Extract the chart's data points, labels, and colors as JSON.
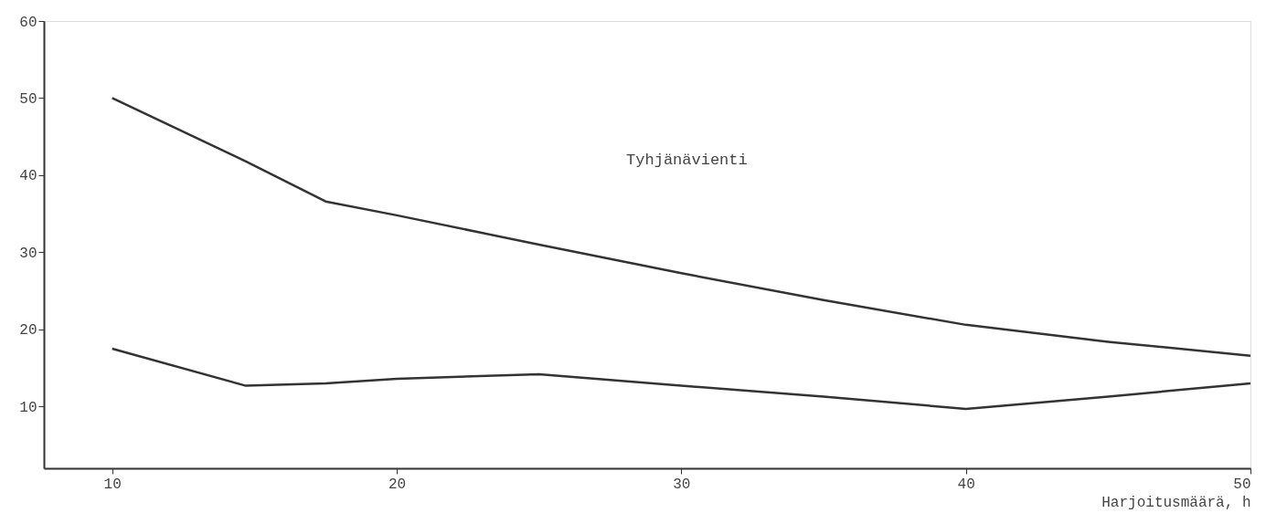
{
  "chart_data": {
    "type": "line",
    "xlabel": "Harjoitusmäärä, h",
    "x": [
      10,
      14.7,
      17.5,
      20,
      25,
      30,
      35,
      40,
      45,
      50
    ],
    "series": [
      {
        "color": "#333333",
        "values": [
          50,
          41.8,
          36.6,
          34.8,
          31.0,
          27.3,
          23.8,
          20.6,
          18.4,
          16.6
        ]
      },
      {
        "color": "#333333",
        "values": [
          17.5,
          12.7,
          13.0,
          13.6,
          14.2,
          12.7,
          11.3,
          9.7,
          11.3,
          13.0
        ]
      }
    ],
    "xlim": [
      7.6,
      50
    ],
    "xticks": [
      10,
      20,
      30,
      40,
      50
    ],
    "ylim": [
      2,
      60
    ],
    "yticks": [
      10,
      20,
      30,
      40,
      50,
      60
    ],
    "grid": false,
    "marker": "none",
    "line_style": "solid",
    "annotations": [
      "Tyhjänävienti"
    ]
  }
}
